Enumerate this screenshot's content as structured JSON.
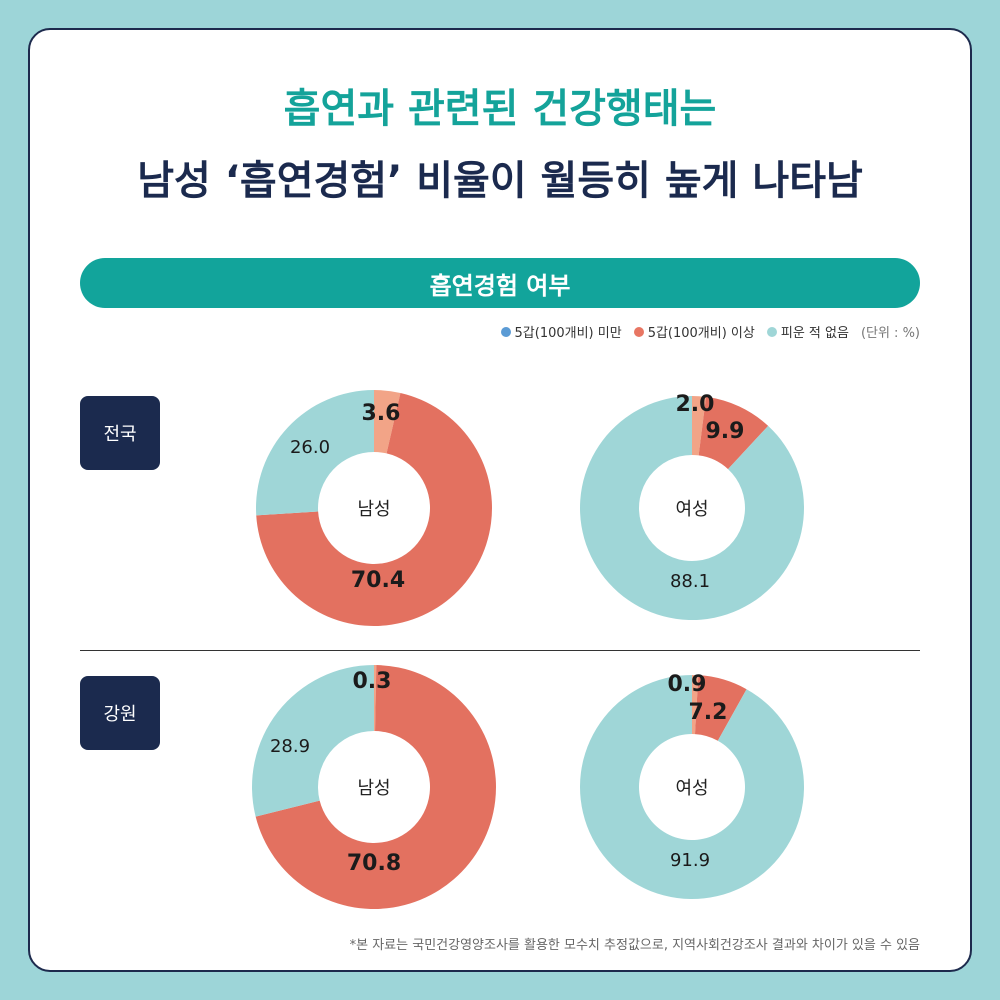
{
  "title_line1": "흡연과 관련된 건강행태는",
  "title_line2": "남성 ‘흡연경험’ 비율이 월등히 높게 나타남",
  "banner": "흡연경험 여부",
  "legend": {
    "items": [
      {
        "label": "5갑(100개비) 미만",
        "color": "#5b9bd5"
      },
      {
        "label": "5갑(100개비) 이상",
        "color": "#e87663"
      },
      {
        "label": "피운 적 없음",
        "color": "#9fd6d7"
      }
    ],
    "unit": "(단위 : %)"
  },
  "regions": [
    "전국",
    "강원"
  ],
  "footnote": "*본 자료는 국민건강영양조사를 활용한 모수치 추정값으로, 지역사회건강조사 결과와 차이가 있을 수 있음",
  "colors": {
    "less5": "#f2a487",
    "more5": "#e37160",
    "never": "#9fd6d7",
    "accent": "#12a49b",
    "navy": "#1b2a4e"
  },
  "chart_data": [
    {
      "type": "pie",
      "region": "전국",
      "center_label": "남성",
      "categories": [
        "5갑(100개비) 미만",
        "5갑(100개비) 이상",
        "피운 적 없음"
      ],
      "values": [
        3.6,
        70.4,
        26.0
      ],
      "labels": [
        "3.6",
        "70.4",
        "26.0"
      ]
    },
    {
      "type": "pie",
      "region": "전국",
      "center_label": "여성",
      "categories": [
        "5갑(100개비) 미만",
        "5갑(100개비) 이상",
        "피운 적 없음"
      ],
      "values": [
        2.0,
        9.9,
        88.1
      ],
      "labels": [
        "2.0",
        "9.9",
        "88.1"
      ]
    },
    {
      "type": "pie",
      "region": "강원",
      "center_label": "남성",
      "categories": [
        "5갑(100개비) 미만",
        "5갑(100개비) 이상",
        "피운 적 없음"
      ],
      "values": [
        0.3,
        70.8,
        28.9
      ],
      "labels": [
        "0.3",
        "70.8",
        "28.9"
      ]
    },
    {
      "type": "pie",
      "region": "강원",
      "center_label": "여성",
      "categories": [
        "5갑(100개비) 미만",
        "5갑(100개비) 이상",
        "피운 적 없음"
      ],
      "values": [
        0.9,
        7.2,
        91.9
      ],
      "labels": [
        "0.9",
        "7.2",
        "91.9"
      ]
    }
  ]
}
